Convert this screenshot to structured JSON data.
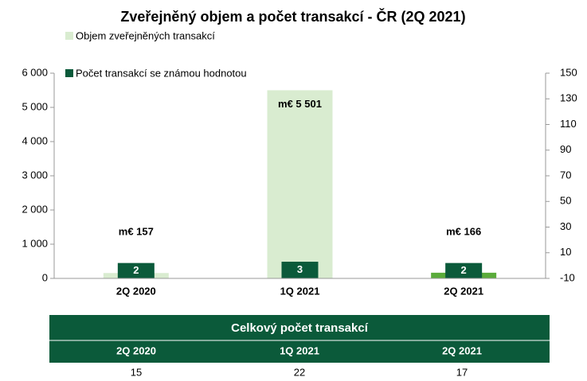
{
  "chart_data": {
    "type": "bar",
    "title": "Zveřejněný objem a počet transakcí - ČR (2Q 2021)",
    "categories": [
      "2Q 2020",
      "1Q 2021",
      "2Q 2021"
    ],
    "series": [
      {
        "name": "Objem zveřejněných transakcí",
        "color": "#d9ecd0",
        "colors": [
          "#d9ecd0",
          "#d9ecd0",
          "#5aab3a"
        ],
        "values": [
          157,
          5501,
          166
        ],
        "value_labels": [
          "m€ 157",
          "m€ 5 501",
          "m€ 166"
        ]
      },
      {
        "name": "Počet transakcí se známou hodnotou",
        "color": "#0b5a3a",
        "axis": "y2",
        "values": [
          2,
          3,
          2
        ]
      }
    ],
    "ylim": [
      0,
      6000
    ],
    "yticks": [
      0,
      {
        "value": 1000,
        "label": "1 000"
      },
      {
        "value": 2000,
        "label": "2 000"
      },
      {
        "value": 3000,
        "label": "3 000"
      },
      {
        "value": 4000,
        "label": "4 000"
      },
      {
        "value": 5000,
        "label": "5 000"
      },
      {
        "value": 6000,
        "label": "6 000"
      }
    ],
    "y2lim": [
      -10,
      150
    ],
    "y2ticks": [
      -10,
      10,
      30,
      50,
      70,
      90,
      110,
      130,
      150
    ]
  },
  "table": {
    "title": "Celkový počet transakcí",
    "columns": [
      "2Q 2020",
      "1Q 2021",
      "2Q 2021"
    ],
    "rows": [
      [
        15,
        22,
        17
      ]
    ]
  }
}
